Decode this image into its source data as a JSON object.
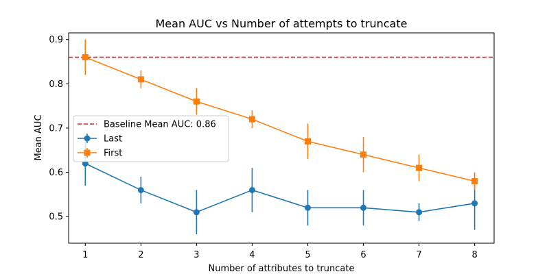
{
  "chart_data": {
    "type": "line",
    "title": "Mean AUC vs Number of attempts to truncate",
    "xlabel": "Number of attributes to truncate",
    "ylabel": "Mean AUC",
    "x": [
      1,
      2,
      3,
      4,
      5,
      6,
      7,
      8
    ],
    "xlim": [
      0.7,
      8.35
    ],
    "ylim": [
      0.44,
      0.915
    ],
    "xticks": [
      "1",
      "2",
      "3",
      "4",
      "5",
      "6",
      "7",
      "8"
    ],
    "yticks": [
      "0.5",
      "0.6",
      "0.7",
      "0.8",
      "0.9"
    ],
    "grid": false,
    "legend_position": "center-left",
    "baseline": {
      "name": "Baseline Mean AUC: 0.86",
      "value": 0.86,
      "color": "#d62728",
      "style": "dashed"
    },
    "series": [
      {
        "name": "Last",
        "color": "#1f77b4",
        "marker": "circle",
        "values": [
          0.62,
          0.56,
          0.51,
          0.56,
          0.52,
          0.52,
          0.51,
          0.53
        ],
        "errors": [
          0.05,
          0.03,
          0.05,
          0.05,
          0.04,
          0.04,
          0.02,
          0.06
        ]
      },
      {
        "name": "First",
        "color": "#ff7f0e",
        "marker": "square",
        "values": [
          0.86,
          0.81,
          0.76,
          0.72,
          0.67,
          0.64,
          0.61,
          0.58
        ],
        "errors": [
          0.04,
          0.02,
          0.03,
          0.02,
          0.04,
          0.04,
          0.03,
          0.02
        ]
      }
    ]
  }
}
